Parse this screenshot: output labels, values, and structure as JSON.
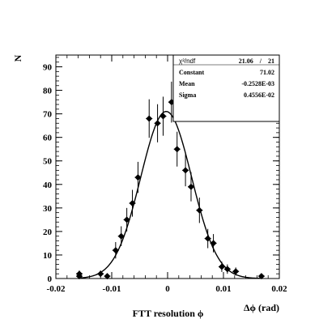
{
  "chart_data": {
    "type": "scatter",
    "title": "",
    "xlabel": "Δϕ (rad)",
    "ylabel": "N",
    "caption": "FTT resolution ϕ",
    "xlim": [
      -0.02,
      0.02
    ],
    "ylim": [
      0,
      95
    ],
    "x_ticks": [
      -0.02,
      -0.01,
      0,
      0.01,
      0.02
    ],
    "x_tick_labels": [
      "-0.02",
      "-0.01",
      "0",
      "0.01",
      "0.02"
    ],
    "y_ticks": [
      0,
      10,
      20,
      30,
      40,
      50,
      60,
      70,
      80,
      90
    ],
    "y_tick_labels": [
      "0",
      "10",
      "20",
      "30",
      "40",
      "50",
      "60",
      "70",
      "80",
      "90"
    ],
    "grid": false,
    "series": [
      {
        "points": [
          {
            "x": -0.0158,
            "y": 2,
            "err": 1.4
          },
          {
            "x": -0.0158,
            "y": 1,
            "err": 1.0
          },
          {
            "x": -0.012,
            "y": 2,
            "err": 1.4
          },
          {
            "x": -0.0108,
            "y": 1,
            "err": 1.0
          },
          {
            "x": -0.0093,
            "y": 12,
            "err": 3.5
          },
          {
            "x": -0.0083,
            "y": 18,
            "err": 4.2
          },
          {
            "x": -0.0073,
            "y": 25,
            "err": 5.0
          },
          {
            "x": -0.0063,
            "y": 32,
            "err": 5.7
          },
          {
            "x": -0.0053,
            "y": 43,
            "err": 6.6
          },
          {
            "x": -0.0033,
            "y": 68,
            "err": 8.2
          },
          {
            "x": -0.0018,
            "y": 66,
            "err": 8.1
          },
          {
            "x": -0.0008,
            "y": 69,
            "err": 8.3
          },
          {
            "x": 0.0007,
            "y": 75,
            "err": 8.7
          },
          {
            "x": 0.0017,
            "y": 55,
            "err": 7.4
          },
          {
            "x": 0.0032,
            "y": 46,
            "err": 6.8
          },
          {
            "x": 0.0042,
            "y": 39,
            "err": 6.2
          },
          {
            "x": 0.0057,
            "y": 29,
            "err": 5.4
          },
          {
            "x": 0.0072,
            "y": 17,
            "err": 4.1
          },
          {
            "x": 0.0082,
            "y": 15,
            "err": 3.9
          },
          {
            "x": 0.0097,
            "y": 5,
            "err": 2.2
          },
          {
            "x": 0.0107,
            "y": 4,
            "err": 2.0
          },
          {
            "x": 0.0122,
            "y": 3,
            "err": 1.7
          },
          {
            "x": 0.0168,
            "y": 1,
            "err": 1.0
          }
        ]
      }
    ],
    "fit": {
      "function": "gaussian",
      "constant": 71.02,
      "mean": -0.0002528,
      "sigma": 0.004556
    }
  },
  "stats_box": {
    "rows": [
      {
        "label": "χ²/ndf",
        "value": "21.06    /    21"
      },
      {
        "label": "Constant",
        "value": "71.02"
      },
      {
        "label": "Mean",
        "value": "-0.2528E-03"
      },
      {
        "label": "Sigma",
        "value": "0.4556E-02"
      }
    ]
  }
}
